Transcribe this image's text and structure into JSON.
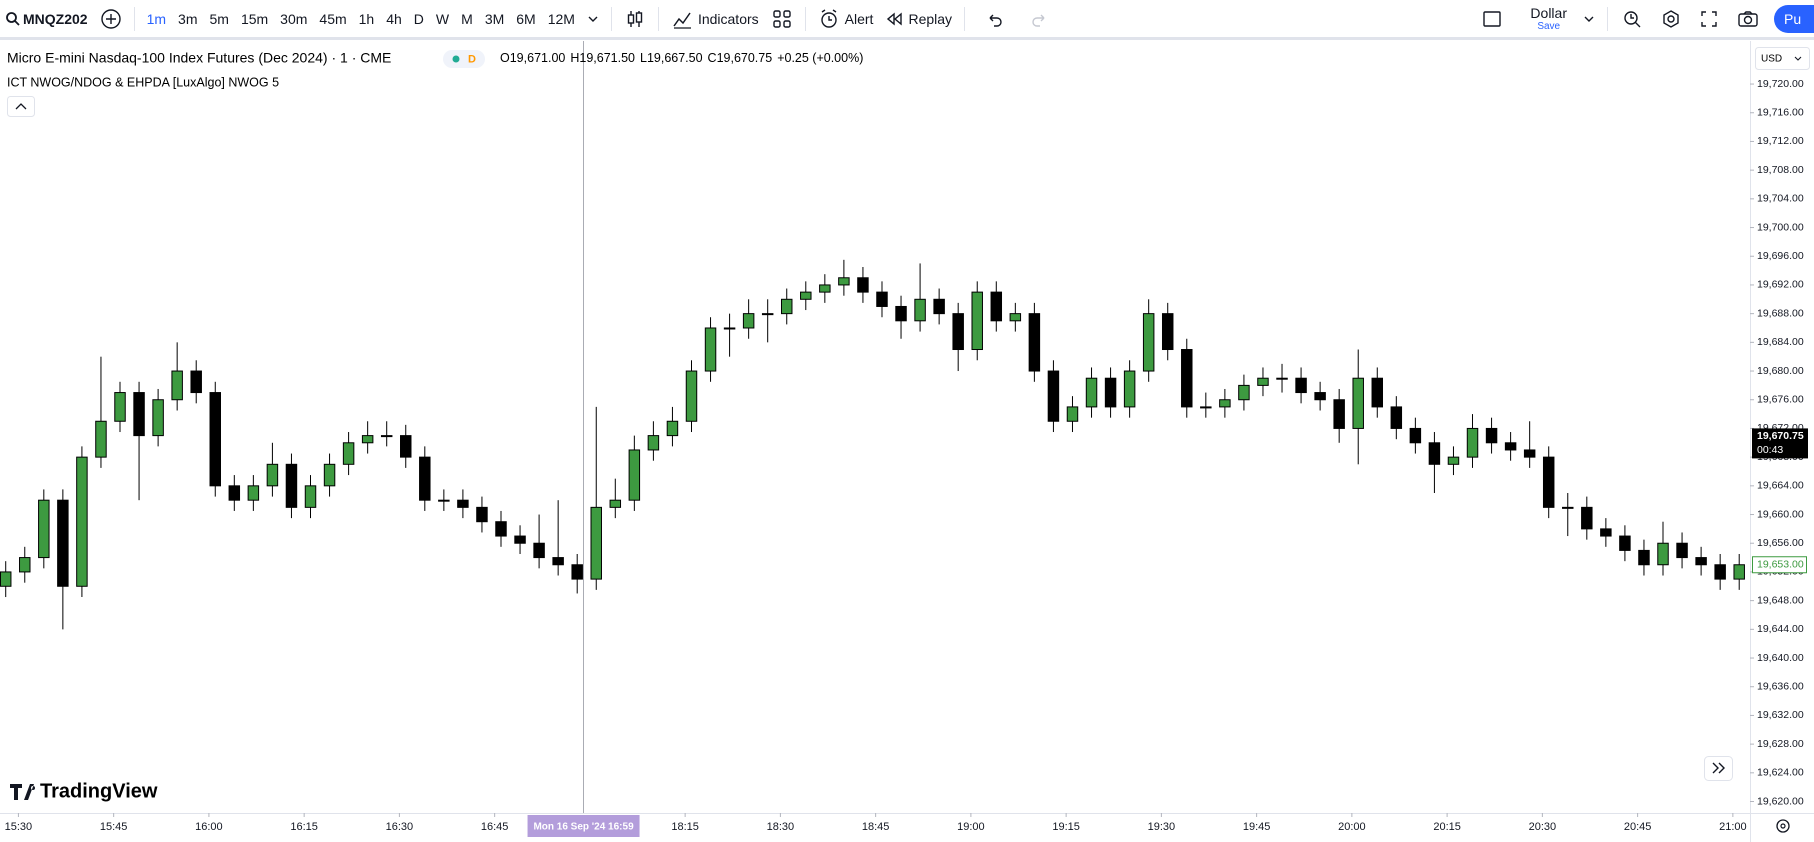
{
  "toolbar": {
    "symbol": "MNQZ202",
    "intervals": [
      "1m",
      "3m",
      "5m",
      "15m",
      "30m",
      "45m",
      "1h",
      "4h",
      "D",
      "W",
      "M",
      "3M",
      "6M",
      "12M"
    ],
    "active_interval": 0,
    "indicators": "Indicators",
    "alert": "Alert",
    "replay": "Replay",
    "layout": "Dollar",
    "save": "Save",
    "publish": "Pu"
  },
  "legend": {
    "title": "Micro E-mini Nasdaq-100 Index Futures (Dec 2024) · 1 · CME",
    "badge": "D",
    "ohlc": [
      {
        "key": "O",
        "value": "19,671.00"
      },
      {
        "key": "H",
        "value": "19,671.50"
      },
      {
        "key": "L",
        "value": "19,667.50"
      },
      {
        "key": "C",
        "value": "19,670.75"
      }
    ],
    "change": "+0.25 (+0.00%)",
    "indicator": "ICT NWOG/NDOG & EHPDA [LuxAlgo] NWOG 5"
  },
  "watermark": "TradingView",
  "chart_data": {
    "type": "candlestick",
    "currency": "USD",
    "up_color": "#3d9a40",
    "down_color": "#000000",
    "grid": false,
    "xlim": [
      -2.9,
      272.7
    ],
    "xticks": [
      {
        "value": 0,
        "label": "15:30"
      },
      {
        "value": 15,
        "label": "15:45"
      },
      {
        "value": 30,
        "label": "16:00"
      },
      {
        "value": 45,
        "label": "16:15"
      },
      {
        "value": 60,
        "label": "16:30"
      },
      {
        "value": 75,
        "label": "16:45"
      },
      {
        "value": 105,
        "label": "18:15"
      },
      {
        "value": 120,
        "label": "18:30"
      },
      {
        "value": 135,
        "label": "18:45"
      },
      {
        "value": 150,
        "label": "19:00"
      },
      {
        "value": 165,
        "label": "19:15"
      },
      {
        "value": 180,
        "label": "19:30"
      },
      {
        "value": 195,
        "label": "19:45"
      },
      {
        "value": 210,
        "label": "20:00"
      },
      {
        "value": 225,
        "label": "20:15"
      },
      {
        "value": 240,
        "label": "20:30"
      },
      {
        "value": 255,
        "label": "20:45"
      },
      {
        "value": 270,
        "label": "21:00"
      }
    ],
    "ylim": [
      19618.4,
      19726
    ],
    "yticks": [
      {
        "value": 19620,
        "label": "19,620.00"
      },
      {
        "value": 19624,
        "label": "19,624.00"
      },
      {
        "value": 19628,
        "label": "19,628.00"
      },
      {
        "value": 19632,
        "label": "19,632.00"
      },
      {
        "value": 19636,
        "label": "19,636.00"
      },
      {
        "value": 19640,
        "label": "19,640.00"
      },
      {
        "value": 19644,
        "label": "19,644.00"
      },
      {
        "value": 19648,
        "label": "19,648.00"
      },
      {
        "value": 19652,
        "label": "19,652.00"
      },
      {
        "value": 19656,
        "label": "19,656.00"
      },
      {
        "value": 19660,
        "label": "19,660.00"
      },
      {
        "value": 19664,
        "label": "19,664.00"
      },
      {
        "value": 19668,
        "label": "19,668.00"
      },
      {
        "value": 19672,
        "label": "19,672.00"
      },
      {
        "value": 19676,
        "label": "19,676.00"
      },
      {
        "value": 19680,
        "label": "19,680.00"
      },
      {
        "value": 19684,
        "label": "19,684.00"
      },
      {
        "value": 19688,
        "label": "19,688.00"
      },
      {
        "value": 19692,
        "label": "19,692.00"
      },
      {
        "value": 19696,
        "label": "19,696.00"
      },
      {
        "value": 19700,
        "label": "19,700.00"
      },
      {
        "value": 19704,
        "label": "19,704.00"
      },
      {
        "value": 19708,
        "label": "19,708.00"
      },
      {
        "value": 19712,
        "label": "19,712.00"
      },
      {
        "value": 19716,
        "label": "19,716.00"
      },
      {
        "value": 19720,
        "label": "19,720.00"
      }
    ],
    "x": [
      -2,
      1,
      4,
      7,
      10,
      13,
      16,
      19,
      22,
      25,
      28,
      31,
      34,
      37,
      40,
      43,
      46,
      49,
      52,
      55,
      58,
      61,
      64,
      67,
      70,
      73,
      76,
      79,
      82,
      85,
      88,
      91,
      94,
      97,
      100,
      103,
      106,
      109,
      112,
      115,
      118,
      121,
      124,
      127,
      130,
      133,
      136,
      139,
      142,
      145,
      148,
      151,
      154,
      157,
      160,
      163,
      166,
      169,
      172,
      175,
      178,
      181,
      184,
      187,
      190,
      193,
      196,
      199,
      202,
      205,
      208,
      211,
      214,
      217,
      220,
      223,
      226,
      229,
      232,
      235,
      238,
      241,
      244,
      247,
      250,
      253,
      256,
      259,
      262,
      265,
      268,
      271
    ],
    "open": [
      19650,
      19652,
      19654,
      19662,
      19650,
      19668,
      19673,
      19677,
      19671,
      19676,
      19680,
      19677,
      19664,
      19662,
      19664,
      19667,
      19661,
      19664,
      19667,
      19670,
      19671,
      19671,
      19668,
      19662,
      19662,
      19661,
      19659,
      19657,
      19656,
      19654,
      19653,
      19651,
      19661,
      19662,
      19669,
      19671,
      19673,
      19680,
      19686,
      19686,
      19688,
      19688,
      19690,
      19691,
      19692,
      19693,
      19691,
      19689,
      19687,
      19690,
      19688,
      19683,
      19691,
      19687,
      19688,
      19680,
      19673,
      19675,
      19679,
      19675,
      19680,
      19688,
      19683,
      19675,
      19675,
      19676,
      19678,
      19679,
      19679,
      19677,
      19676,
      19672,
      19679,
      19675,
      19672,
      19670,
      19667,
      19668,
      19672,
      19670,
      19669,
      19668,
      19661,
      19661,
      19658,
      19657,
      19655,
      19653,
      19656,
      19654,
      19653,
      19651
    ],
    "high": [
      19653.5,
      19655.5,
      19663.5,
      19663.5,
      19669.5,
      19682,
      19678.5,
      19678.5,
      19677.5,
      19684,
      19681.5,
      19678.5,
      19665.5,
      19665.5,
      19670,
      19668.5,
      19665.5,
      19668.5,
      19671.5,
      19673,
      19673,
      19672.5,
      19669.5,
      19663.5,
      19663.5,
      19662.5,
      19660.5,
      19658.5,
      19660,
      19662,
      19654.5,
      19675,
      19665,
      19671,
      19673,
      19675,
      19681.5,
      19687.5,
      19688,
      19690,
      19690,
      19691.5,
      19692.5,
      19693.5,
      19695.5,
      19694.5,
      19692.5,
      19690.5,
      19695,
      19691.5,
      19689.5,
      19692.5,
      19692.5,
      19689.5,
      19689.5,
      19681.5,
      19676.5,
      19680.5,
      19680.5,
      19681.5,
      19690,
      19689.5,
      19684.5,
      19677,
      19677.5,
      19679.5,
      19680.5,
      19681,
      19680.5,
      19678.5,
      19677.5,
      19683,
      19680.5,
      19676.5,
      19673.5,
      19671.5,
      19669.5,
      19674,
      19673.5,
      19671.5,
      19673,
      19669.5,
      19663,
      19662.5,
      19659.5,
      19658.5,
      19656.5,
      19659,
      19657.5,
      19655.5,
      19654.5,
      19654.5
    ],
    "low": [
      19648.5,
      19650.5,
      19652.5,
      19644,
      19648.5,
      19666.5,
      19671.5,
      19662,
      19669.5,
      19674.5,
      19675.5,
      19662.5,
      19660.5,
      19660.5,
      19662.5,
      19659.5,
      19659.5,
      19662.5,
      19665.5,
      19668.5,
      19669.5,
      19666.5,
      19660.5,
      19660.5,
      19659.5,
      19657.5,
      19655.5,
      19654.5,
      19652.5,
      19651.5,
      19649,
      19649.5,
      19659.5,
      19660.5,
      19667.5,
      19669.5,
      19671.5,
      19678.5,
      19682,
      19684.5,
      19684,
      19686.5,
      19688.5,
      19689.5,
      19690.5,
      19689.5,
      19687.5,
      19684.5,
      19685.5,
      19686.5,
      19680,
      19681.5,
      19685.5,
      19685.5,
      19678.5,
      19671.5,
      19671.5,
      19673.5,
      19673.5,
      19673.5,
      19678.5,
      19681.5,
      19673.5,
      19673.5,
      19673.5,
      19674.5,
      19676.5,
      19677,
      19675.5,
      19674.5,
      19670,
      19667,
      19673.5,
      19670.5,
      19668.5,
      19663,
      19665.5,
      19666.5,
      19668.5,
      19667.5,
      19666.5,
      19659.5,
      19657,
      19656.5,
      19655.5,
      19653.5,
      19651.5,
      19651.5,
      19652.5,
      19651.5,
      19649.5,
      19649.5
    ],
    "close": [
      19652,
      19654,
      19662,
      19650,
      19668,
      19673,
      19677,
      19671,
      19676,
      19680,
      19677,
      19664,
      19662,
      19664,
      19667,
      19661,
      19664,
      19667,
      19670,
      19671,
      19671,
      19668,
      19662,
      19662,
      19661,
      19659,
      19657,
      19656,
      19654,
      19653,
      19651,
      19661,
      19662,
      19669,
      19671,
      19673,
      19680,
      19686,
      19686,
      19688,
      19688,
      19690,
      19691,
      19692,
      19693,
      19691,
      19689,
      19687,
      19690,
      19688,
      19683,
      19691,
      19687,
      19688,
      19680,
      19673,
      19675,
      19679,
      19675,
      19680,
      19688,
      19683,
      19675,
      19675,
      19676,
      19678,
      19679,
      19679,
      19677,
      19676,
      19672,
      19679,
      19675,
      19672,
      19670,
      19667,
      19668,
      19672,
      19670,
      19669,
      19668,
      19661,
      19661,
      19658,
      19657,
      19655,
      19653,
      19656,
      19654,
      19653,
      19651,
      19653
    ],
    "crosshair": {
      "x": 89,
      "label": "Mon 16 Sep '24   16:59"
    },
    "last_price": {
      "value": 19670.75,
      "label": "19,670.75",
      "countdown": "00:43"
    },
    "marker_price": {
      "value": 19653,
      "label": "19,653.00"
    }
  }
}
